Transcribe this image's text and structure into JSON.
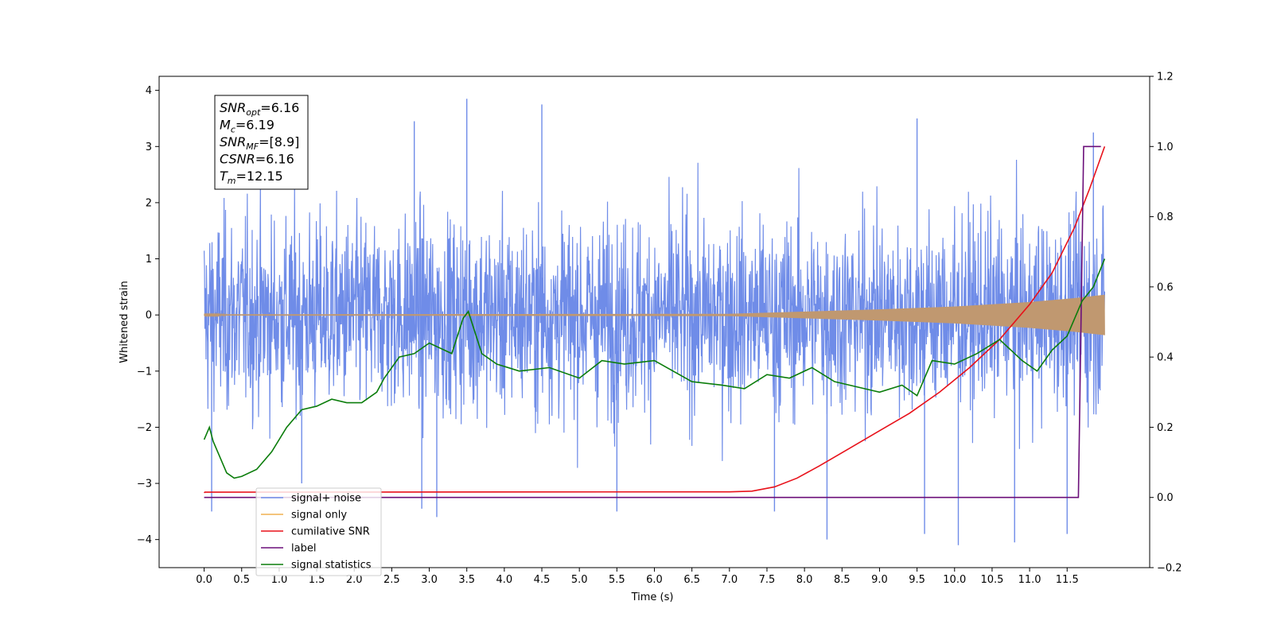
{
  "chart_data": {
    "type": "line",
    "xlabel": "Time (s)",
    "ylabel": "Whitened strain",
    "y2label": "",
    "xlim": [
      -0.6,
      12.6
    ],
    "ylim": [
      -4.5,
      4.25
    ],
    "y2lim": [
      -0.2,
      1.2
    ],
    "x_ticks": [
      "0.0",
      "0.5",
      "1.0",
      "1.5",
      "2.0",
      "2.5",
      "3.0",
      "3.5",
      "4.0",
      "4.5",
      "5.0",
      "5.5",
      "6.0",
      "6.5",
      "7.0",
      "7.5",
      "8.0",
      "8.5",
      "9.0",
      "9.5",
      "10.0",
      "10.5",
      "11.0",
      "11.5"
    ],
    "y_ticks": [
      "4",
      "3",
      "2",
      "1",
      "0",
      "−1",
      "−2",
      "−3",
      "−4"
    ],
    "y2_ticks": [
      "1.2",
      "1.0",
      "0.8",
      "0.6",
      "0.4",
      "0.2",
      "0.0",
      "−0.2"
    ],
    "grid": false,
    "legend_position": "lower-left",
    "annotation": {
      "lines": [
        {
          "name": "SNR",
          "sub": "opt",
          "value": "=6.16"
        },
        {
          "name": "M",
          "sub": "c",
          "value": "=6.19"
        },
        {
          "name": "SNR",
          "sub": "MF",
          "value": "=[8.9]"
        },
        {
          "name": "CSNR",
          "sub": "",
          "value": "=6.16"
        },
        {
          "name": "T",
          "sub": "m",
          "value": "=12.15"
        }
      ]
    },
    "series": [
      {
        "name": "signal+ noise",
        "color": "#6f8ce8",
        "axis": "left",
        "kind": "noise",
        "x_range": [
          0.0,
          12.0
        ],
        "typical_band": [
          -1.3,
          1.3
        ],
        "peak_values": [
          {
            "x": 0.1,
            "y": -3.5
          },
          {
            "x": 1.3,
            "y": -3.0
          },
          {
            "x": 2.8,
            "y": 3.45
          },
          {
            "x": 2.9,
            "y": -3.45
          },
          {
            "x": 3.1,
            "y": -3.6
          },
          {
            "x": 3.5,
            "y": 3.85
          },
          {
            "x": 4.5,
            "y": 3.75
          },
          {
            "x": 5.5,
            "y": -3.5
          },
          {
            "x": 7.6,
            "y": -3.5
          },
          {
            "x": 8.3,
            "y": -4.0
          },
          {
            "x": 9.5,
            "y": 3.5
          },
          {
            "x": 9.6,
            "y": -3.9
          },
          {
            "x": 10.05,
            "y": -4.1
          },
          {
            "x": 10.8,
            "y": -4.05
          },
          {
            "x": 11.5,
            "y": -3.9
          },
          {
            "x": 11.85,
            "y": 3.25
          }
        ]
      },
      {
        "name": "signal only",
        "color": "#f0b050",
        "axis": "left",
        "kind": "chirp",
        "x_range": [
          0.0,
          12.0
        ],
        "amplitude": [
          {
            "x": 0.0,
            "y": 0.01
          },
          {
            "x": 7.0,
            "y": 0.02
          },
          {
            "x": 8.0,
            "y": 0.06
          },
          {
            "x": 9.0,
            "y": 0.1
          },
          {
            "x": 10.0,
            "y": 0.15
          },
          {
            "x": 11.0,
            "y": 0.23
          },
          {
            "x": 11.6,
            "y": 0.3
          },
          {
            "x": 12.0,
            "y": 0.36
          }
        ]
      },
      {
        "name": "cumilative SNR",
        "color": "#e8111a",
        "axis": "right",
        "kind": "line",
        "points": [
          {
            "x": 0.0,
            "y": 0.013
          },
          {
            "x": 0.01,
            "y": 0.015
          },
          {
            "x": 7.0,
            "y": 0.016
          },
          {
            "x": 7.3,
            "y": 0.018
          },
          {
            "x": 7.6,
            "y": 0.03
          },
          {
            "x": 7.9,
            "y": 0.055
          },
          {
            "x": 8.2,
            "y": 0.09
          },
          {
            "x": 8.6,
            "y": 0.14
          },
          {
            "x": 9.0,
            "y": 0.19
          },
          {
            "x": 9.4,
            "y": 0.24
          },
          {
            "x": 9.8,
            "y": 0.3
          },
          {
            "x": 10.2,
            "y": 0.37
          },
          {
            "x": 10.6,
            "y": 0.45
          },
          {
            "x": 11.0,
            "y": 0.55
          },
          {
            "x": 11.3,
            "y": 0.64
          },
          {
            "x": 11.6,
            "y": 0.77
          },
          {
            "x": 11.8,
            "y": 0.88
          },
          {
            "x": 12.0,
            "y": 1.0
          }
        ]
      },
      {
        "name": "label",
        "color": "#6b0f7a",
        "axis": "right",
        "kind": "line",
        "points": [
          {
            "x": 0.0,
            "y": 0.0
          },
          {
            "x": 11.65,
            "y": 0.0
          },
          {
            "x": 11.72,
            "y": 1.0
          },
          {
            "x": 11.95,
            "y": 1.0
          }
        ]
      },
      {
        "name": "signal statistics",
        "color": "#0b7d0b",
        "axis": "right",
        "kind": "line",
        "points": [
          {
            "x": 0.0,
            "y": 0.165
          },
          {
            "x": 0.07,
            "y": 0.2
          },
          {
            "x": 0.12,
            "y": 0.16
          },
          {
            "x": 0.2,
            "y": 0.12
          },
          {
            "x": 0.3,
            "y": 0.07
          },
          {
            "x": 0.4,
            "y": 0.055
          },
          {
            "x": 0.5,
            "y": 0.06
          },
          {
            "x": 0.7,
            "y": 0.08
          },
          {
            "x": 0.9,
            "y": 0.13
          },
          {
            "x": 1.1,
            "y": 0.2
          },
          {
            "x": 1.3,
            "y": 0.25
          },
          {
            "x": 1.5,
            "y": 0.26
          },
          {
            "x": 1.7,
            "y": 0.28
          },
          {
            "x": 1.9,
            "y": 0.27
          },
          {
            "x": 2.1,
            "y": 0.27
          },
          {
            "x": 2.3,
            "y": 0.3
          },
          {
            "x": 2.4,
            "y": 0.34
          },
          {
            "x": 2.6,
            "y": 0.4
          },
          {
            "x": 2.8,
            "y": 0.41
          },
          {
            "x": 3.0,
            "y": 0.44
          },
          {
            "x": 3.3,
            "y": 0.41
          },
          {
            "x": 3.45,
            "y": 0.51
          },
          {
            "x": 3.52,
            "y": 0.53
          },
          {
            "x": 3.7,
            "y": 0.41
          },
          {
            "x": 3.9,
            "y": 0.38
          },
          {
            "x": 4.2,
            "y": 0.36
          },
          {
            "x": 4.6,
            "y": 0.37
          },
          {
            "x": 5.0,
            "y": 0.34
          },
          {
            "x": 5.3,
            "y": 0.39
          },
          {
            "x": 5.6,
            "y": 0.38
          },
          {
            "x": 6.0,
            "y": 0.39
          },
          {
            "x": 6.5,
            "y": 0.33
          },
          {
            "x": 6.9,
            "y": 0.32
          },
          {
            "x": 7.2,
            "y": 0.31
          },
          {
            "x": 7.5,
            "y": 0.35
          },
          {
            "x": 7.8,
            "y": 0.34
          },
          {
            "x": 8.1,
            "y": 0.37
          },
          {
            "x": 8.4,
            "y": 0.33
          },
          {
            "x": 8.8,
            "y": 0.31
          },
          {
            "x": 9.0,
            "y": 0.3
          },
          {
            "x": 9.3,
            "y": 0.32
          },
          {
            "x": 9.5,
            "y": 0.29
          },
          {
            "x": 9.7,
            "y": 0.39
          },
          {
            "x": 10.0,
            "y": 0.38
          },
          {
            "x": 10.3,
            "y": 0.41
          },
          {
            "x": 10.6,
            "y": 0.45
          },
          {
            "x": 10.9,
            "y": 0.39
          },
          {
            "x": 11.1,
            "y": 0.36
          },
          {
            "x": 11.3,
            "y": 0.42
          },
          {
            "x": 11.5,
            "y": 0.46
          },
          {
            "x": 11.7,
            "y": 0.56
          },
          {
            "x": 11.85,
            "y": 0.6
          },
          {
            "x": 12.0,
            "y": 0.68
          }
        ]
      }
    ],
    "legend": [
      {
        "label": "signal+ noise",
        "color": "#6f8ce8"
      },
      {
        "label": "signal only",
        "color": "#f0b050"
      },
      {
        "label": "cumilative SNR",
        "color": "#e8111a"
      },
      {
        "label": "label",
        "color": "#6b0f7a"
      },
      {
        "label": "signal statistics",
        "color": "#0b7d0b"
      }
    ]
  }
}
